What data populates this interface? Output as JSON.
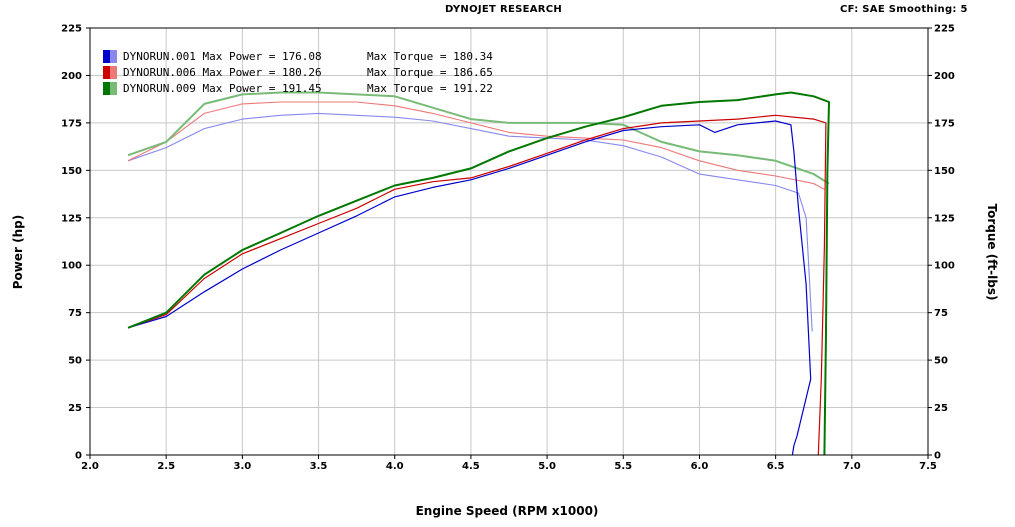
{
  "header": {
    "title": "DYNOJET RESEARCH",
    "info": "CF: SAE  Smoothing: 5"
  },
  "chart_data": {
    "type": "line",
    "title": "DYNOJET RESEARCH",
    "xlabel": "Engine Speed (RPM x1000)",
    "ylabel_left": "Power (hp)",
    "ylabel_right": "Torque (ft-lbs)",
    "xlim": [
      2.0,
      7.5
    ],
    "ylim": [
      0,
      225
    ],
    "x_ticks": [
      "2.0",
      "2.5",
      "3.0",
      "3.5",
      "4.0",
      "4.5",
      "5.0",
      "5.5",
      "6.0",
      "6.5",
      "7.0",
      "7.5"
    ],
    "y_ticks": [
      "0",
      "25",
      "50",
      "75",
      "100",
      "125",
      "150",
      "175",
      "200",
      "225"
    ],
    "grid": true,
    "legend_position": "top-left",
    "legend": [
      {
        "run": "DYNORUN.001",
        "max_power_label": "Max Power =",
        "max_power": "176.08",
        "max_torque_label": "Max Torque =",
        "max_torque": "180.34"
      },
      {
        "run": "DYNORUN.006",
        "max_power_label": "Max Power =",
        "max_power": "180.26",
        "max_torque_label": "Max Torque =",
        "max_torque": "186.65"
      },
      {
        "run": "DYNORUN.009",
        "max_power_label": "Max Power =",
        "max_power": "191.45",
        "max_torque_label": "Max Torque =",
        "max_torque": "191.22"
      }
    ],
    "series": [
      {
        "name": "DYNORUN.001",
        "kind": "power",
        "color": "#0000cc",
        "x": [
          2.25,
          2.5,
          2.75,
          3.0,
          3.25,
          3.5,
          3.75,
          4.0,
          4.25,
          4.5,
          4.75,
          5.0,
          5.25,
          5.5,
          5.75,
          6.0,
          6.1,
          6.25,
          6.5,
          6.6,
          6.62,
          6.65,
          6.7,
          6.73,
          6.64,
          6.62,
          6.61
        ],
        "y": [
          67,
          73,
          86,
          98,
          108,
          117,
          126,
          136,
          141,
          145,
          151,
          158,
          165,
          171,
          173,
          174,
          170,
          174,
          176,
          174,
          160,
          130,
          90,
          40,
          10,
          5,
          0
        ]
      },
      {
        "name": "DYNORUN.001",
        "kind": "torque",
        "color": "#8888ee",
        "x": [
          2.25,
          2.5,
          2.75,
          3.0,
          3.25,
          3.5,
          3.75,
          4.0,
          4.25,
          4.5,
          4.75,
          5.0,
          5.25,
          5.5,
          5.75,
          6.0,
          6.25,
          6.5,
          6.65,
          6.7,
          6.72,
          6.74
        ],
        "y": [
          155,
          162,
          172,
          177,
          179,
          180,
          179,
          178,
          176,
          172,
          168,
          167,
          166,
          163,
          157,
          148,
          145,
          142,
          138,
          125,
          95,
          65
        ]
      },
      {
        "name": "DYNORUN.006",
        "kind": "power",
        "color": "#cc0000",
        "x": [
          2.25,
          2.5,
          2.75,
          3.0,
          3.25,
          3.5,
          3.75,
          4.0,
          4.25,
          4.5,
          4.75,
          5.0,
          5.25,
          5.5,
          5.75,
          6.0,
          6.25,
          6.5,
          6.75,
          6.83,
          6.82,
          6.8,
          6.78
        ],
        "y": [
          67,
          74,
          93,
          106,
          114,
          122,
          130,
          140,
          144,
          146,
          152,
          159,
          166,
          172,
          175,
          176,
          177,
          179,
          177,
          175,
          110,
          40,
          0
        ]
      },
      {
        "name": "DYNORUN.006",
        "kind": "torque",
        "color": "#ee7777",
        "x": [
          2.25,
          2.5,
          2.75,
          3.0,
          3.25,
          3.5,
          3.75,
          4.0,
          4.25,
          4.5,
          4.75,
          5.0,
          5.25,
          5.5,
          5.75,
          6.0,
          6.25,
          6.5,
          6.75,
          6.82
        ],
        "y": [
          155,
          165,
          180,
          185,
          186,
          186,
          186,
          184,
          180,
          175,
          170,
          168,
          167,
          166,
          162,
          155,
          150,
          147,
          143,
          140
        ]
      },
      {
        "name": "DYNORUN.009",
        "kind": "power",
        "color": "#007700",
        "x": [
          2.25,
          2.5,
          2.75,
          3.0,
          3.25,
          3.5,
          3.75,
          4.0,
          4.25,
          4.5,
          4.75,
          5.0,
          5.25,
          5.5,
          5.75,
          6.0,
          6.25,
          6.5,
          6.6,
          6.75,
          6.85,
          6.84,
          6.83,
          6.82
        ],
        "y": [
          67,
          75,
          95,
          108,
          117,
          126,
          134,
          142,
          146,
          151,
          160,
          167,
          173,
          178,
          184,
          186,
          187,
          190,
          191,
          189,
          186,
          150,
          60,
          0
        ]
      },
      {
        "name": "DYNORUN.009",
        "kind": "torque",
        "color": "#77bb77",
        "x": [
          2.25,
          2.5,
          2.75,
          3.0,
          3.25,
          3.5,
          3.75,
          4.0,
          4.25,
          4.5,
          4.75,
          5.0,
          5.25,
          5.5,
          5.75,
          6.0,
          6.25,
          6.5,
          6.75,
          6.85
        ],
        "y": [
          158,
          165,
          185,
          190,
          191,
          191,
          190,
          189,
          183,
          177,
          175,
          175,
          175,
          174,
          165,
          160,
          158,
          155,
          148,
          143
        ]
      }
    ]
  }
}
